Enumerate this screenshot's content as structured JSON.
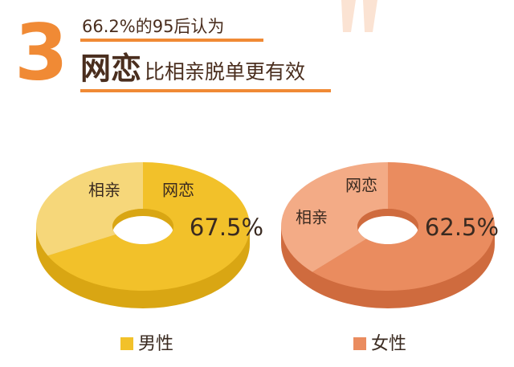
{
  "header": {
    "number": "3",
    "line1": "66.2%的95后认为",
    "highlight": "网恋",
    "line2": "比相亲脱单更有效"
  },
  "chart_data": [
    {
      "type": "pie",
      "title": "男性",
      "categories": [
        "相亲",
        "网恋"
      ],
      "values": [
        32.5,
        67.5
      ],
      "value_labels": [
        null,
        "67.5%"
      ],
      "colors": [
        "#f6d77a",
        "#f2c12a"
      ],
      "side_color": "#d9a613"
    },
    {
      "type": "pie",
      "title": "女性",
      "categories": [
        "相亲",
        "网恋"
      ],
      "values": [
        37.5,
        62.5
      ],
      "value_labels": [
        null,
        "62.5%"
      ],
      "colors": [
        "#f3ab86",
        "#ea8c5f"
      ],
      "side_color": "#cf6b3e"
    }
  ]
}
